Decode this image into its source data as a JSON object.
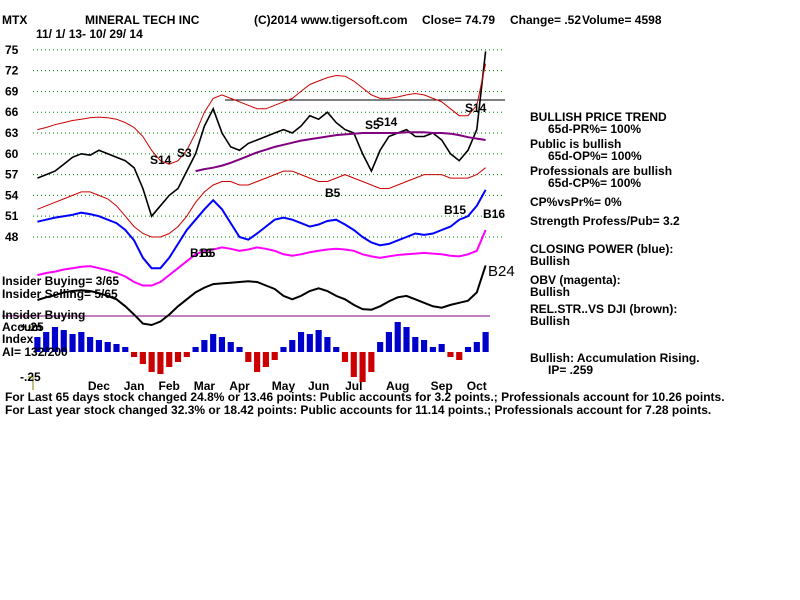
{
  "header": {
    "ticker": "MTX",
    "company": "MINERAL TECH INC",
    "source": "(C)2014 www.tigersoft.com",
    "close": "Close= 74.79",
    "change": "Change= .52",
    "volume": "Volume= 4598",
    "dates": "11/ 1/ 13- 10/ 29/ 14"
  },
  "chart_data": {
    "type": "line",
    "categories": [
      null,
      null,
      null,
      null,
      null,
      null,
      null,
      "Dec",
      null,
      null,
      null,
      "Jan",
      null,
      null,
      null,
      "Feb",
      null,
      null,
      null,
      "Mar",
      null,
      null,
      null,
      "Apr",
      null,
      null,
      null,
      null,
      "May",
      null,
      null,
      null,
      "Jun",
      null,
      null,
      null,
      "Jul",
      null,
      null,
      null,
      null,
      "Aug",
      null,
      null,
      null,
      null,
      "Sep",
      null,
      null,
      null,
      "Oct",
      null
    ],
    "ylim": [
      34,
      77
    ],
    "yticks": [
      48,
      51,
      54,
      57,
      60,
      63,
      66,
      69,
      72,
      75
    ],
    "grid": true,
    "y2lim": [
      -0.35,
      0.35
    ],
    "y2ticks": [
      {
        "value": 0.25,
        "label": "+.25"
      },
      {
        "value": -0.25,
        "label": "-.25"
      }
    ],
    "series": [
      {
        "name": "Price",
        "color": "#000000",
        "values": [
          56.5,
          57,
          57.5,
          58.5,
          59.5,
          60,
          59.8,
          60.5,
          60,
          59.5,
          59,
          58,
          55,
          51,
          52.5,
          54,
          55,
          57.5,
          60,
          64,
          66.5,
          63,
          61,
          60.5,
          61.5,
          62,
          62.5,
          63,
          63.5,
          63,
          64,
          65.5,
          65,
          66,
          64.5,
          63.5,
          63,
          60,
          57.5,
          60.5,
          62.5,
          63,
          63.5,
          62.5,
          62.5,
          63,
          62,
          60,
          59,
          60.5,
          63.5,
          74.79
        ]
      },
      {
        "name": "Upper band",
        "color": "#cc0000",
        "values": [
          63.5,
          63.8,
          64.2,
          64.5,
          64.8,
          65,
          65.2,
          65.3,
          65.2,
          65,
          64.5,
          63.8,
          62.5,
          60.5,
          59,
          58.5,
          59,
          60.5,
          63,
          66,
          68,
          68.5,
          68,
          67.5,
          67,
          66.5,
          66.5,
          67,
          67.5,
          68,
          69,
          70,
          70.5,
          71,
          71.3,
          71.2,
          70.5,
          69.5,
          68.5,
          68,
          68,
          68.2,
          68.5,
          68.7,
          68.5,
          68,
          67.5,
          66.5,
          65.5,
          65.5,
          67,
          73
        ]
      },
      {
        "name": "Lower band",
        "color": "#cc0000",
        "values": [
          52,
          52.5,
          53,
          53.5,
          54,
          54.5,
          54.5,
          54,
          53.5,
          52.5,
          51,
          49.5,
          48.5,
          48,
          48,
          48.5,
          49.5,
          51,
          53,
          54.5,
          55.5,
          56,
          56,
          55.5,
          55.5,
          56,
          56.5,
          57,
          57.5,
          57.5,
          57,
          56.5,
          56,
          56,
          56.5,
          57,
          56.5,
          56,
          55.5,
          55,
          55,
          55.5,
          56,
          56.5,
          57,
          57,
          57,
          56.5,
          56.5,
          56.5,
          57,
          58
        ]
      },
      {
        "name": "Moving average",
        "color": "#800080",
        "values": [
          null,
          null,
          null,
          null,
          null,
          null,
          null,
          null,
          null,
          null,
          null,
          null,
          null,
          null,
          null,
          null,
          null,
          null,
          57.5,
          57.8,
          58,
          58.3,
          58.7,
          59.2,
          59.7,
          60.2,
          60.6,
          61,
          61.3,
          61.6,
          61.9,
          62.1,
          62.3,
          62.5,
          62.7,
          62.8,
          62.9,
          63,
          63,
          63,
          63,
          63,
          63.1,
          63.1,
          63.1,
          63,
          63,
          62.9,
          62.7,
          62.4,
          62.2,
          62
        ]
      },
      {
        "name": "Closing Power",
        "color": "#0000ff",
        "values": [
          50.2,
          50.5,
          50.8,
          51,
          51.2,
          51.5,
          51.3,
          51,
          50.5,
          50,
          49,
          47.5,
          45,
          43.5,
          43.5,
          45,
          47,
          49,
          50.5,
          52,
          53.3,
          52,
          50,
          48,
          47.6,
          48.5,
          49.5,
          50.5,
          50.8,
          50.5,
          50,
          49.5,
          49.8,
          50.3,
          50.5,
          49.8,
          49,
          48,
          47.2,
          46.8,
          47,
          47.5,
          48,
          48.5,
          48.3,
          48.5,
          49,
          49.5,
          50.5,
          51,
          52.5,
          54.8
        ]
      },
      {
        "name": "OBV",
        "color": "#ff00ff",
        "values": [
          42.5,
          42.8,
          43,
          43.3,
          43.5,
          43.7,
          43.8,
          43.5,
          43.2,
          42.8,
          42.3,
          41.5,
          41,
          41,
          41.5,
          42.5,
          43.5,
          44.5,
          45.5,
          46,
          46.2,
          46.5,
          46.3,
          46,
          46.2,
          46.5,
          46.3,
          46,
          45.5,
          45.3,
          45.5,
          45.8,
          46,
          46.2,
          46.3,
          46.2,
          46,
          45.5,
          45.2,
          45,
          45.2,
          45.4,
          45.5,
          45.6,
          45.7,
          45.6,
          45.5,
          45.3,
          45.2,
          45.5,
          46,
          49
        ]
      },
      {
        "name": "Rel. Str.",
        "color": "#000000",
        "values": [
          38.9,
          39.3,
          39.6,
          40,
          40.2,
          40.3,
          40.2,
          39.9,
          39.5,
          39,
          38,
          36.8,
          35.5,
          35.3,
          35.8,
          36.8,
          38,
          39,
          40,
          40.7,
          41.2,
          41.3,
          41.4,
          41.5,
          41.6,
          41.5,
          41,
          40.5,
          39.5,
          39,
          39.5,
          40.2,
          40.6,
          40.2,
          39.5,
          39,
          38.2,
          37.6,
          37.5,
          38,
          38.7,
          39.3,
          39.5,
          39,
          38.5,
          38,
          37.8,
          38.2,
          38.5,
          38.8,
          40,
          43.9
        ]
      },
      {
        "name": "Accum Index",
        "axis": "y2",
        "color": "#0000cc",
        "negative_color": "#cc0000",
        "values": [
          0.15,
          0.2,
          0.25,
          0.22,
          0.18,
          0.2,
          0.15,
          0.12,
          0.1,
          0.08,
          0.05,
          -0.05,
          -0.12,
          -0.2,
          -0.22,
          -0.15,
          -0.1,
          -0.05,
          0.05,
          0.12,
          0.18,
          0.15,
          0.1,
          0.05,
          -0.1,
          -0.2,
          -0.15,
          -0.08,
          0.05,
          0.12,
          0.2,
          0.18,
          0.22,
          0.15,
          0.05,
          -0.1,
          -0.25,
          -0.3,
          -0.2,
          0.1,
          0.2,
          0.3,
          0.25,
          0.15,
          0.12,
          0.05,
          0.08,
          -0.05,
          -0.08,
          0.05,
          0.1,
          0.2
        ]
      }
    ],
    "annotations": [
      "S14",
      "S3",
      "B16",
      "B5",
      "B5",
      "S5",
      "S14",
      "S14",
      "B15",
      "B16",
      "B24"
    ]
  },
  "panel": [
    "BULLISH PRICE TREND",
    "65d-PR%= 100%",
    "Public is bullish",
    "65d-OP%= 100%",
    "Professionals are bullish",
    "65d-CP%= 100%",
    "CP%vsPr%= 0%",
    "Strength Profess/Pub= 3.2",
    "CLOSING POWER (blue):",
    "Bullish",
    "OBV (magenta):",
    "Bullish",
    "REL.STR..VS DJI (brown):",
    "Bullish",
    "Bullish: Accumulation Rising.",
    "IP= .259"
  ],
  "insider": [
    "Insider Buying= 3/65",
    "Insider Selling= 5/65",
    "Insider Buying",
    "Accum",
    "Index",
    "AI= 132/200"
  ],
  "footer": [
    "For Last 65 days stock changed  24.8% or  13.46 points:  Public accounts for  3.2 points.;  Professionals account for  10.26 points.",
    "For Last year stock changed  32.3% or  18.42 points:  Public accounts for  11.14 points.;  Professionals account for  7.28 points."
  ]
}
